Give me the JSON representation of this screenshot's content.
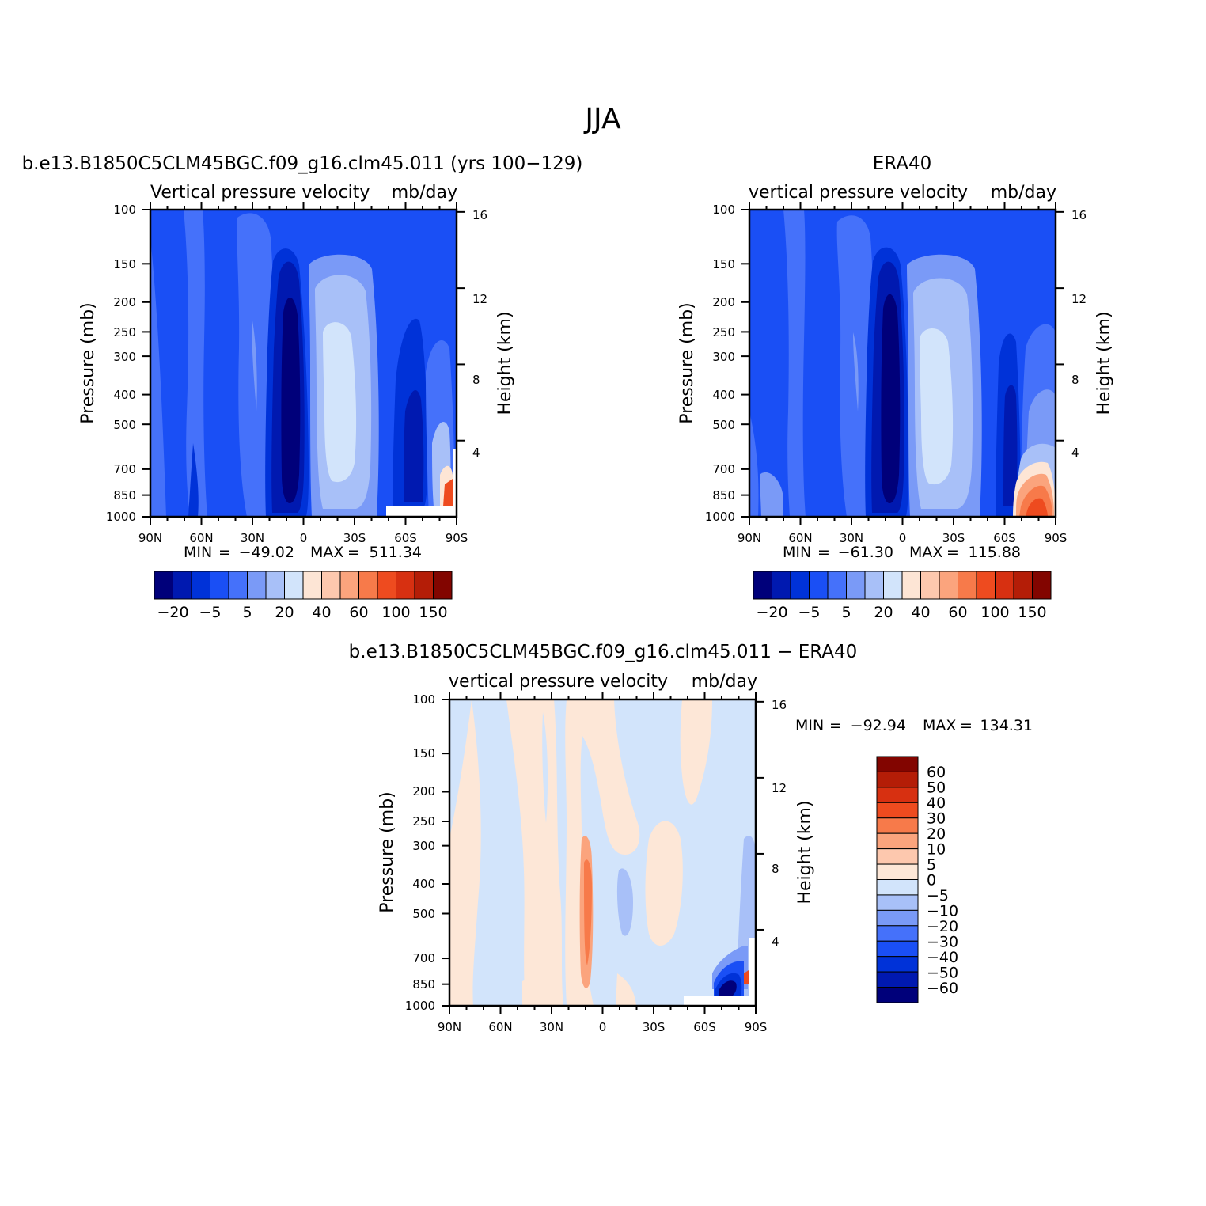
{
  "figure": {
    "title": "JJA"
  },
  "palettes": {
    "absolute": [
      "#00007a",
      "#0019b0",
      "#0032d8",
      "#1a4ff5",
      "#4571fa",
      "#7a9af7",
      "#a8c0f8",
      "#d2e4fb",
      "#fde5d5",
      "#fdc8ae",
      "#fba47d",
      "#f77a4a",
      "#ee4b1f",
      "#d73011",
      "#b41d07",
      "#820500"
    ],
    "difference": [
      "#00007a",
      "#0019b0",
      "#0032d8",
      "#1a4ff5",
      "#4571fa",
      "#7a9af7",
      "#a8c0f8",
      "#d2e4fb",
      "#fde7d7",
      "#fdc8ae",
      "#fba47d",
      "#f77a4a",
      "#ee4b1f",
      "#d73011",
      "#b41d07",
      "#820500"
    ]
  },
  "chart_data": [
    {
      "type": "heatmap",
      "panel": "model",
      "title": "b.e13.B1850C5CLM45BGC.f09_g16.clm45.011 (yrs 100-129)",
      "subtitle_left": "Vertical pressure velocity",
      "subtitle_right": "mb/day",
      "xlabel": "",
      "ylabel": "Pressure (mb)",
      "y2label": "Height (km)",
      "x_ticks": [
        "90N",
        "60N",
        "30N",
        "0",
        "30S",
        "60S",
        "90S"
      ],
      "y_ticks": [
        100,
        150,
        200,
        250,
        300,
        400,
        500,
        700,
        850,
        1000
      ],
      "y2_ticks": [
        16,
        12,
        8,
        4
      ],
      "ylim": [
        1000,
        100
      ],
      "y_scale": "log",
      "stats": {
        "min_label": "MIN",
        "min": "-49.02",
        "max_label": "MAX",
        "max": "511.34"
      },
      "colorbar": {
        "orientation": "horizontal",
        "labels": [
          "-20",
          "-5",
          "5",
          "20",
          "40",
          "60",
          "100",
          "150"
        ]
      }
    },
    {
      "type": "heatmap",
      "panel": "obs",
      "title": "ERA40",
      "subtitle_left": "vertical pressure velocity",
      "subtitle_right": "mb/day",
      "xlabel": "",
      "ylabel": "Pressure (mb)",
      "y2label": "Height (km)",
      "x_ticks": [
        "90N",
        "60N",
        "30N",
        "0",
        "30S",
        "60S",
        "90S"
      ],
      "y_ticks": [
        100,
        150,
        200,
        250,
        300,
        400,
        500,
        700,
        850,
        1000
      ],
      "y2_ticks": [
        16,
        12,
        8,
        4
      ],
      "ylim": [
        1000,
        100
      ],
      "y_scale": "log",
      "stats": {
        "min_label": "MIN",
        "min": "-61.30",
        "max_label": "MAX",
        "max": "115.88"
      },
      "colorbar": {
        "orientation": "horizontal",
        "labels": [
          "-20",
          "-5",
          "5",
          "20",
          "40",
          "60",
          "100",
          "150"
        ]
      }
    },
    {
      "type": "heatmap",
      "panel": "difference",
      "title": "b.e13.B1850C5CLM45BGC.f09_g16.clm45.011 - ERA40",
      "subtitle_left": "vertical pressure velocity",
      "subtitle_right": "mb/day",
      "xlabel": "",
      "ylabel": "Pressure (mb)",
      "y2label": "Height (km)",
      "x_ticks": [
        "90N",
        "60N",
        "30N",
        "0",
        "30S",
        "60S",
        "90S"
      ],
      "y_ticks": [
        100,
        150,
        200,
        250,
        300,
        400,
        500,
        700,
        850,
        1000
      ],
      "y2_ticks": [
        16,
        12,
        8,
        4
      ],
      "ylim": [
        1000,
        100
      ],
      "y_scale": "log",
      "stats": {
        "min_label": "MIN",
        "min": "-92.94",
        "max_label": "MAX",
        "max": "134.31"
      },
      "colorbar": {
        "orientation": "vertical",
        "labels": [
          "60",
          "50",
          "40",
          "30",
          "20",
          "10",
          "5",
          "0",
          "-5",
          "-10",
          "-20",
          "-30",
          "-40",
          "-50",
          "-60"
        ]
      }
    }
  ]
}
